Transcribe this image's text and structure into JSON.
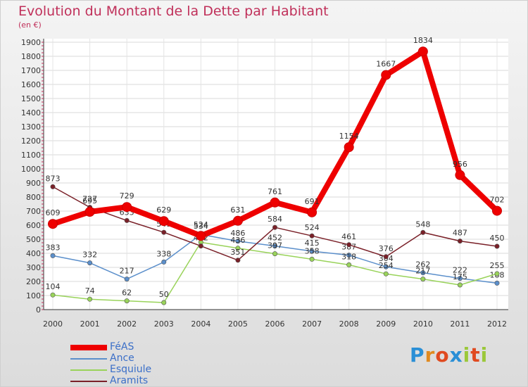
{
  "header": {
    "title": "Evolution du Montant de la Dette par Habitant",
    "subtitle": "(en €)"
  },
  "brand": {
    "letters": [
      "P",
      "r",
      "o",
      "x",
      "i",
      "t",
      "i"
    ],
    "colors": [
      "#2a8fd6",
      "#e08a20",
      "#e04a20",
      "#2a8fd6",
      "#9bc83a",
      "#e04a20",
      "#9bc83a"
    ]
  },
  "chart_data": {
    "type": "line",
    "title": "Evolution du Montant de la Dette par Habitant",
    "subtitle": "(en €)",
    "x": [
      "2000",
      "2001",
      "2002",
      "2003",
      "2004",
      "2005",
      "2006",
      "2007",
      "2008",
      "2009",
      "2010",
      "2011",
      "2012"
    ],
    "ylim": [
      0,
      1900
    ],
    "yticks": [
      0,
      100,
      200,
      300,
      400,
      500,
      600,
      700,
      800,
      900,
      1000,
      1100,
      1200,
      1300,
      1400,
      1500,
      1600,
      1700,
      1800,
      1900
    ],
    "legend_position": "bottom-left",
    "series": [
      {
        "name": "FéAS",
        "color": "#ee0000",
        "values": [
          609,
          695,
          729,
          629,
          524,
          631,
          761,
          691,
          1154,
          1667,
          1834,
          956,
          702
        ]
      },
      {
        "name": "Ance",
        "color": "#5b8fcb",
        "values": [
          383,
          332,
          217,
          338,
          534,
          486,
          452,
          415,
          387,
          304,
          262,
          222,
          188
        ]
      },
      {
        "name": "Esquiule",
        "color": "#99d35a",
        "values": [
          104,
          74,
          62,
          50,
          478,
          436,
          397,
          358,
          318,
          254,
          217,
          175,
          255
        ]
      },
      {
        "name": "Aramits",
        "color": "#7a2028",
        "values": [
          873,
          727,
          633,
          549,
          452,
          351,
          584,
          524,
          461,
          376,
          548,
          487,
          450
        ]
      }
    ]
  }
}
